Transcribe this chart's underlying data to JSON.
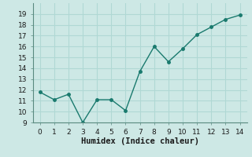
{
  "x": [
    0,
    1,
    2,
    3,
    4,
    5,
    6,
    7,
    8,
    9,
    10,
    11,
    12,
    13,
    14
  ],
  "y": [
    11.8,
    11.1,
    11.6,
    9.0,
    11.1,
    11.1,
    10.1,
    13.7,
    16.0,
    14.6,
    15.8,
    17.1,
    17.8,
    18.5,
    18.9
  ],
  "xlabel": "Humidex (Indice chaleur)",
  "ylim": [
    9,
    20
  ],
  "xlim": [
    -0.5,
    14.5
  ],
  "yticks": [
    9,
    10,
    11,
    12,
    13,
    14,
    15,
    16,
    17,
    18,
    19
  ],
  "xticks": [
    0,
    1,
    2,
    3,
    4,
    5,
    6,
    7,
    8,
    9,
    10,
    11,
    12,
    13,
    14
  ],
  "line_color": "#1a7a6e",
  "marker_color": "#1a7a6e",
  "bg_color": "#cde8e5",
  "grid_color": "#b0d8d4",
  "spine_color": "#5a8a80"
}
